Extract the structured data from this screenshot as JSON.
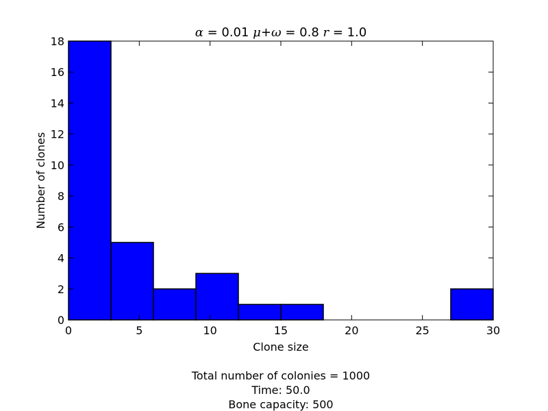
{
  "chart_data": {
    "type": "bar",
    "title_parts": [
      {
        "text": "α",
        "italic": true
      },
      {
        "text": " = 0.01 ",
        "italic": false
      },
      {
        "text": "μ",
        "italic": true
      },
      {
        "text": "+",
        "italic": false
      },
      {
        "text": "ω",
        "italic": true
      },
      {
        "text": " = 0.8 ",
        "italic": false
      },
      {
        "text": "r",
        "italic": true
      },
      {
        "text": " = 1.0",
        "italic": false
      }
    ],
    "xlabel": "Clone size",
    "ylabel": "Number of clones",
    "xlim": [
      0,
      30
    ],
    "ylim": [
      0,
      18
    ],
    "x_ticks": [
      0,
      5,
      10,
      15,
      20,
      25,
      30
    ],
    "y_ticks": [
      0,
      2,
      4,
      6,
      8,
      10,
      12,
      14,
      16,
      18
    ],
    "bin_edges": [
      0,
      3,
      6,
      9,
      12,
      15,
      18,
      21,
      24,
      27,
      30
    ],
    "values": [
      18,
      5,
      2,
      3,
      1,
      1,
      0,
      0,
      0,
      2
    ],
    "bar_color": "#0000ff",
    "edge_color": "#000000",
    "grid": false,
    "footer_lines": [
      "Total number of colonies = 1000",
      "Time: 50.0",
      "Bone capacity: 500"
    ]
  }
}
